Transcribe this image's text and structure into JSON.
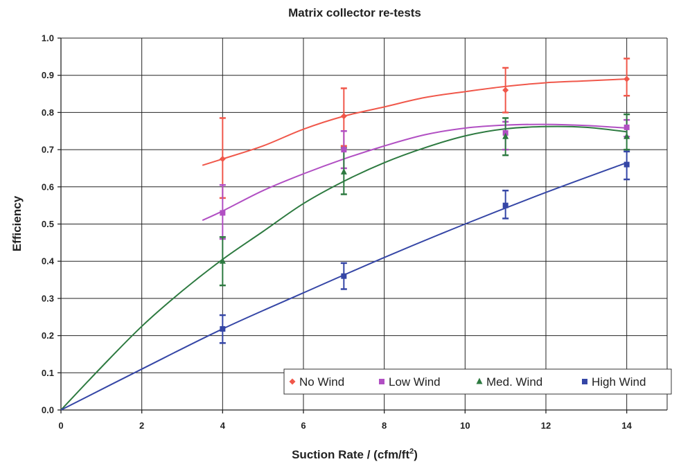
{
  "chart_data": {
    "type": "scatter",
    "title": "Matrix collector re-tests",
    "xlabel": "Suction Rate / (cfm/ft",
    "xlabel_sup": "2",
    "xlabel_end": ")",
    "ylabel": "Efficiency",
    "xlim": [
      0,
      15
    ],
    "ylim": [
      0,
      1.0
    ],
    "x_ticks": [
      "0",
      "2",
      "4",
      "6",
      "8",
      "10",
      "12",
      "14"
    ],
    "y_ticks": [
      "0.0",
      "0.1",
      "0.2",
      "0.3",
      "0.4",
      "0.5",
      "0.6",
      "0.7",
      "0.8",
      "0.9",
      "1.0"
    ],
    "grid": true,
    "legend_position": "bottom-right",
    "series": [
      {
        "name": "No Wind",
        "color": "#f0574a",
        "marker": "diamond",
        "points": [
          {
            "x": 4,
            "y": 0.675,
            "ylow": 0.57,
            "yhigh": 0.785
          },
          {
            "x": 7,
            "y": 0.79,
            "ylow": 0.71,
            "yhigh": 0.865
          },
          {
            "x": 11,
            "y": 0.86,
            "ylow": 0.8,
            "yhigh": 0.92
          },
          {
            "x": 14,
            "y": 0.89,
            "ylow": 0.845,
            "yhigh": 0.945
          }
        ],
        "trend": {
          "x": [
            3.5,
            4,
            5,
            6,
            7,
            8,
            9,
            10,
            11,
            12,
            13,
            14
          ],
          "y": [
            0.658,
            0.675,
            0.71,
            0.755,
            0.79,
            0.815,
            0.84,
            0.856,
            0.87,
            0.88,
            0.885,
            0.89
          ]
        }
      },
      {
        "name": "Low Wind",
        "color": "#b14fc3",
        "marker": "square",
        "points": [
          {
            "x": 4,
            "y": 0.53,
            "ylow": 0.46,
            "yhigh": 0.605
          },
          {
            "x": 7,
            "y": 0.7,
            "ylow": 0.65,
            "yhigh": 0.75
          },
          {
            "x": 11,
            "y": 0.745,
            "ylow": 0.7,
            "yhigh": 0.775
          },
          {
            "x": 14,
            "y": 0.76,
            "ylow": 0.735,
            "yhigh": 0.78
          }
        ],
        "trend": {
          "x": [
            3.5,
            4,
            5,
            6,
            7,
            8,
            9,
            10,
            11,
            12,
            13,
            14
          ],
          "y": [
            0.51,
            0.535,
            0.59,
            0.635,
            0.675,
            0.71,
            0.74,
            0.758,
            0.766,
            0.768,
            0.765,
            0.758
          ]
        }
      },
      {
        "name": "Med. Wind",
        "color": "#2d7a40",
        "marker": "triangle",
        "points": [
          {
            "x": 4,
            "y": 0.4,
            "ylow": 0.335,
            "yhigh": 0.465
          },
          {
            "x": 7,
            "y": 0.64,
            "ylow": 0.58,
            "yhigh": 0.705
          },
          {
            "x": 11,
            "y": 0.735,
            "ylow": 0.685,
            "yhigh": 0.785
          },
          {
            "x": 14,
            "y": 0.735,
            "ylow": 0.7,
            "yhigh": 0.795
          }
        ],
        "trend": {
          "x": [
            0,
            1,
            2,
            3,
            4,
            5,
            6,
            7,
            8,
            9,
            10,
            11,
            12,
            13,
            14
          ],
          "y": [
            0,
            0.115,
            0.225,
            0.32,
            0.405,
            0.48,
            0.555,
            0.615,
            0.665,
            0.705,
            0.737,
            0.756,
            0.762,
            0.76,
            0.748
          ]
        }
      },
      {
        "name": "High Wind",
        "color": "#3546a6",
        "marker": "square",
        "points": [
          {
            "x": 4,
            "y": 0.218,
            "ylow": 0.18,
            "yhigh": 0.255
          },
          {
            "x": 7,
            "y": 0.36,
            "ylow": 0.325,
            "yhigh": 0.395
          },
          {
            "x": 11,
            "y": 0.55,
            "ylow": 0.515,
            "yhigh": 0.59
          },
          {
            "x": 14,
            "y": 0.66,
            "ylow": 0.62,
            "yhigh": 0.695
          }
        ],
        "trend": {
          "x": [
            0,
            2,
            4,
            6,
            8,
            10,
            12,
            14
          ],
          "y": [
            0,
            0.11,
            0.218,
            0.315,
            0.41,
            0.5,
            0.585,
            0.665
          ]
        }
      }
    ]
  }
}
